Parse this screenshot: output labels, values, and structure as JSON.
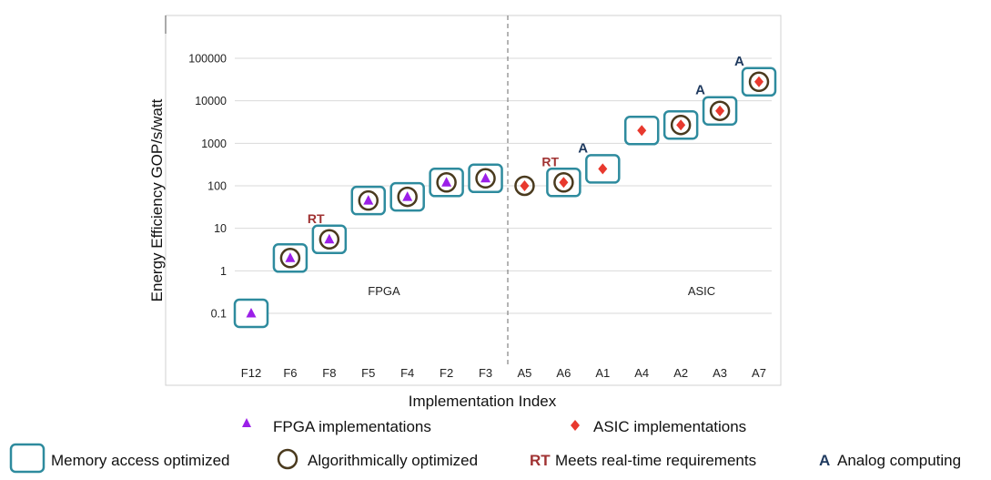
{
  "chart_data": {
    "type": "scatter",
    "ylabel": "Energy Efficiency GOP/s/watt",
    "xlabel": "Implementation Index",
    "yscale": "log",
    "ylim": [
      0.05,
      200000
    ],
    "yticks": [
      {
        "value": 0.1,
        "label": "0.1"
      },
      {
        "value": 1,
        "label": "1"
      },
      {
        "value": 10,
        "label": "10"
      },
      {
        "value": 100,
        "label": "100"
      },
      {
        "value": 1000,
        "label": "1000"
      },
      {
        "value": 10000,
        "label": "10000"
      },
      {
        "value": 100000,
        "label": "100000"
      }
    ],
    "grid": true,
    "categories": [
      "F12",
      "F6",
      "F8",
      "F5",
      "F4",
      "F2",
      "F3",
      "A5",
      "A6",
      "A1",
      "A4",
      "A2",
      "A3",
      "A7"
    ],
    "points": [
      {
        "label": "F12",
        "group": "FPGA",
        "value": 0.1,
        "memory": true,
        "algo": false,
        "rt": false,
        "analog": false
      },
      {
        "label": "F6",
        "group": "FPGA",
        "value": 2,
        "memory": true,
        "algo": true,
        "rt": false,
        "analog": false
      },
      {
        "label": "F8",
        "group": "FPGA",
        "value": 5.5,
        "memory": true,
        "algo": true,
        "rt": true,
        "analog": false
      },
      {
        "label": "F5",
        "group": "FPGA",
        "value": 45,
        "memory": true,
        "algo": true,
        "rt": false,
        "analog": false
      },
      {
        "label": "F4",
        "group": "FPGA",
        "value": 55,
        "memory": true,
        "algo": true,
        "rt": false,
        "analog": false
      },
      {
        "label": "F2",
        "group": "FPGA",
        "value": 120,
        "memory": true,
        "algo": true,
        "rt": false,
        "analog": false
      },
      {
        "label": "F3",
        "group": "FPGA",
        "value": 150,
        "memory": true,
        "algo": true,
        "rt": false,
        "analog": false
      },
      {
        "label": "A5",
        "group": "ASIC",
        "value": 100,
        "memory": false,
        "algo": true,
        "rt": false,
        "analog": false
      },
      {
        "label": "A6",
        "group": "ASIC",
        "value": 120,
        "memory": true,
        "algo": true,
        "rt": true,
        "analog": false
      },
      {
        "label": "A1",
        "group": "ASIC",
        "value": 250,
        "memory": true,
        "algo": false,
        "rt": false,
        "analog": true
      },
      {
        "label": "A4",
        "group": "ASIC",
        "value": 2000,
        "memory": true,
        "algo": false,
        "rt": false,
        "analog": false
      },
      {
        "label": "A2",
        "group": "ASIC",
        "value": 2700,
        "memory": true,
        "algo": true,
        "rt": false,
        "analog": false
      },
      {
        "label": "A3",
        "group": "ASIC",
        "value": 5800,
        "memory": true,
        "algo": true,
        "rt": false,
        "analog": true
      },
      {
        "label": "A7",
        "group": "ASIC",
        "value": 28000,
        "memory": true,
        "algo": true,
        "rt": false,
        "analog": true
      }
    ],
    "region_labels": {
      "fpga": "FPGA",
      "asic": "ASIC"
    },
    "rt_label": "RT",
    "analog_label": "A",
    "colors": {
      "fpga": "#9B1FE8",
      "asic": "#E8392E",
      "memory_box": "#2E8B9E",
      "algo_circle": "#4A3A1E",
      "rt_text": "#A03232",
      "analog_text": "#1F3A5F",
      "grid": "#D9D9D9",
      "divider": "#8C8C8C",
      "frame": "#D0D0D0"
    },
    "legend": {
      "fpga": "FPGA implementations",
      "asic": "ASIC implementations",
      "memory": "Memory access optimized",
      "algo": "Algorithmically optimized",
      "rt_symbol": "RT",
      "rt": "Meets real-time  requirements",
      "analog_symbol": "A",
      "analog": "Analog computing"
    }
  }
}
